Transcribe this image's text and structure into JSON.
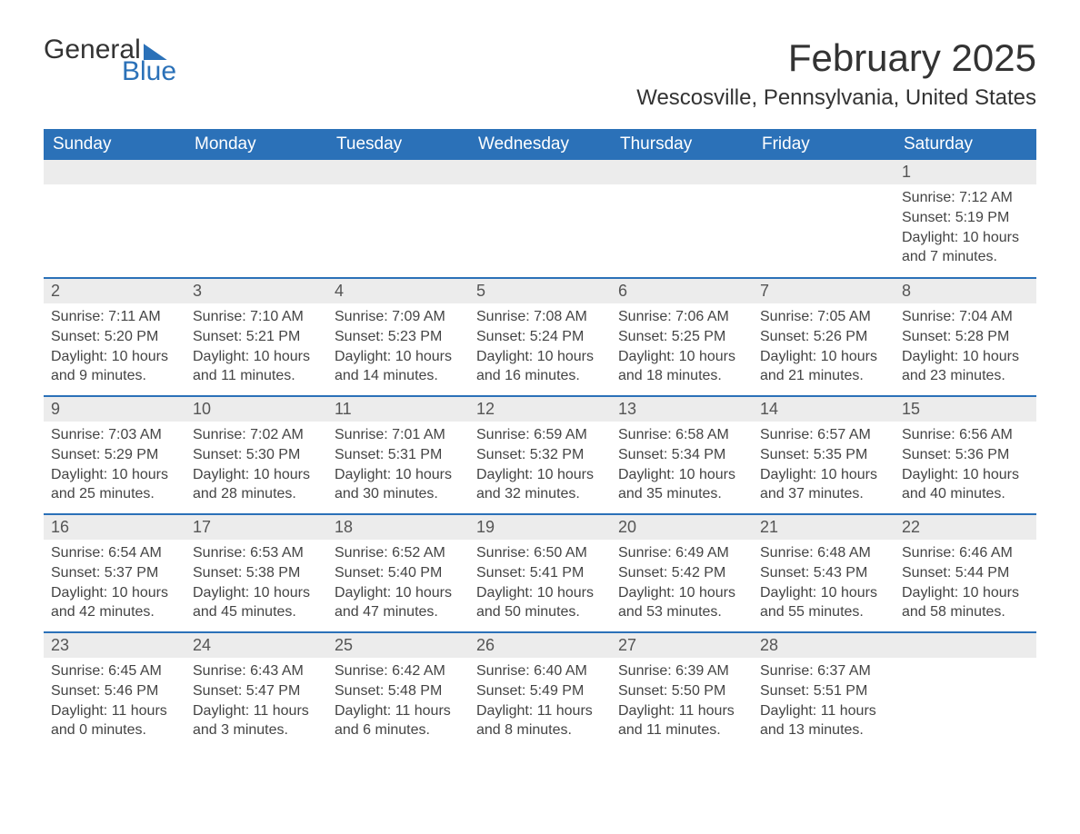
{
  "logo": {
    "word1": "General",
    "word2": "Blue"
  },
  "title": "February 2025",
  "location": "Wescosville, Pennsylvania, United States",
  "colors": {
    "brand": "#2b71b8",
    "header_bg": "#2b71b8",
    "daynum_bg": "#ececec",
    "text": "#333333"
  },
  "daysOfWeek": [
    "Sunday",
    "Monday",
    "Tuesday",
    "Wednesday",
    "Thursday",
    "Friday",
    "Saturday"
  ],
  "weeks": [
    [
      null,
      null,
      null,
      null,
      null,
      null,
      {
        "n": "1",
        "sunrise": "Sunrise: 7:12 AM",
        "sunset": "Sunset: 5:19 PM",
        "daylight": "Daylight: 10 hours and 7 minutes."
      }
    ],
    [
      {
        "n": "2",
        "sunrise": "Sunrise: 7:11 AM",
        "sunset": "Sunset: 5:20 PM",
        "daylight": "Daylight: 10 hours and 9 minutes."
      },
      {
        "n": "3",
        "sunrise": "Sunrise: 7:10 AM",
        "sunset": "Sunset: 5:21 PM",
        "daylight": "Daylight: 10 hours and 11 minutes."
      },
      {
        "n": "4",
        "sunrise": "Sunrise: 7:09 AM",
        "sunset": "Sunset: 5:23 PM",
        "daylight": "Daylight: 10 hours and 14 minutes."
      },
      {
        "n": "5",
        "sunrise": "Sunrise: 7:08 AM",
        "sunset": "Sunset: 5:24 PM",
        "daylight": "Daylight: 10 hours and 16 minutes."
      },
      {
        "n": "6",
        "sunrise": "Sunrise: 7:06 AM",
        "sunset": "Sunset: 5:25 PM",
        "daylight": "Daylight: 10 hours and 18 minutes."
      },
      {
        "n": "7",
        "sunrise": "Sunrise: 7:05 AM",
        "sunset": "Sunset: 5:26 PM",
        "daylight": "Daylight: 10 hours and 21 minutes."
      },
      {
        "n": "8",
        "sunrise": "Sunrise: 7:04 AM",
        "sunset": "Sunset: 5:28 PM",
        "daylight": "Daylight: 10 hours and 23 minutes."
      }
    ],
    [
      {
        "n": "9",
        "sunrise": "Sunrise: 7:03 AM",
        "sunset": "Sunset: 5:29 PM",
        "daylight": "Daylight: 10 hours and 25 minutes."
      },
      {
        "n": "10",
        "sunrise": "Sunrise: 7:02 AM",
        "sunset": "Sunset: 5:30 PM",
        "daylight": "Daylight: 10 hours and 28 minutes."
      },
      {
        "n": "11",
        "sunrise": "Sunrise: 7:01 AM",
        "sunset": "Sunset: 5:31 PM",
        "daylight": "Daylight: 10 hours and 30 minutes."
      },
      {
        "n": "12",
        "sunrise": "Sunrise: 6:59 AM",
        "sunset": "Sunset: 5:32 PM",
        "daylight": "Daylight: 10 hours and 32 minutes."
      },
      {
        "n": "13",
        "sunrise": "Sunrise: 6:58 AM",
        "sunset": "Sunset: 5:34 PM",
        "daylight": "Daylight: 10 hours and 35 minutes."
      },
      {
        "n": "14",
        "sunrise": "Sunrise: 6:57 AM",
        "sunset": "Sunset: 5:35 PM",
        "daylight": "Daylight: 10 hours and 37 minutes."
      },
      {
        "n": "15",
        "sunrise": "Sunrise: 6:56 AM",
        "sunset": "Sunset: 5:36 PM",
        "daylight": "Daylight: 10 hours and 40 minutes."
      }
    ],
    [
      {
        "n": "16",
        "sunrise": "Sunrise: 6:54 AM",
        "sunset": "Sunset: 5:37 PM",
        "daylight": "Daylight: 10 hours and 42 minutes."
      },
      {
        "n": "17",
        "sunrise": "Sunrise: 6:53 AM",
        "sunset": "Sunset: 5:38 PM",
        "daylight": "Daylight: 10 hours and 45 minutes."
      },
      {
        "n": "18",
        "sunrise": "Sunrise: 6:52 AM",
        "sunset": "Sunset: 5:40 PM",
        "daylight": "Daylight: 10 hours and 47 minutes."
      },
      {
        "n": "19",
        "sunrise": "Sunrise: 6:50 AM",
        "sunset": "Sunset: 5:41 PM",
        "daylight": "Daylight: 10 hours and 50 minutes."
      },
      {
        "n": "20",
        "sunrise": "Sunrise: 6:49 AM",
        "sunset": "Sunset: 5:42 PM",
        "daylight": "Daylight: 10 hours and 53 minutes."
      },
      {
        "n": "21",
        "sunrise": "Sunrise: 6:48 AM",
        "sunset": "Sunset: 5:43 PM",
        "daylight": "Daylight: 10 hours and 55 minutes."
      },
      {
        "n": "22",
        "sunrise": "Sunrise: 6:46 AM",
        "sunset": "Sunset: 5:44 PM",
        "daylight": "Daylight: 10 hours and 58 minutes."
      }
    ],
    [
      {
        "n": "23",
        "sunrise": "Sunrise: 6:45 AM",
        "sunset": "Sunset: 5:46 PM",
        "daylight": "Daylight: 11 hours and 0 minutes."
      },
      {
        "n": "24",
        "sunrise": "Sunrise: 6:43 AM",
        "sunset": "Sunset: 5:47 PM",
        "daylight": "Daylight: 11 hours and 3 minutes."
      },
      {
        "n": "25",
        "sunrise": "Sunrise: 6:42 AM",
        "sunset": "Sunset: 5:48 PM",
        "daylight": "Daylight: 11 hours and 6 minutes."
      },
      {
        "n": "26",
        "sunrise": "Sunrise: 6:40 AM",
        "sunset": "Sunset: 5:49 PM",
        "daylight": "Daylight: 11 hours and 8 minutes."
      },
      {
        "n": "27",
        "sunrise": "Sunrise: 6:39 AM",
        "sunset": "Sunset: 5:50 PM",
        "daylight": "Daylight: 11 hours and 11 minutes."
      },
      {
        "n": "28",
        "sunrise": "Sunrise: 6:37 AM",
        "sunset": "Sunset: 5:51 PM",
        "daylight": "Daylight: 11 hours and 13 minutes."
      },
      null
    ]
  ]
}
